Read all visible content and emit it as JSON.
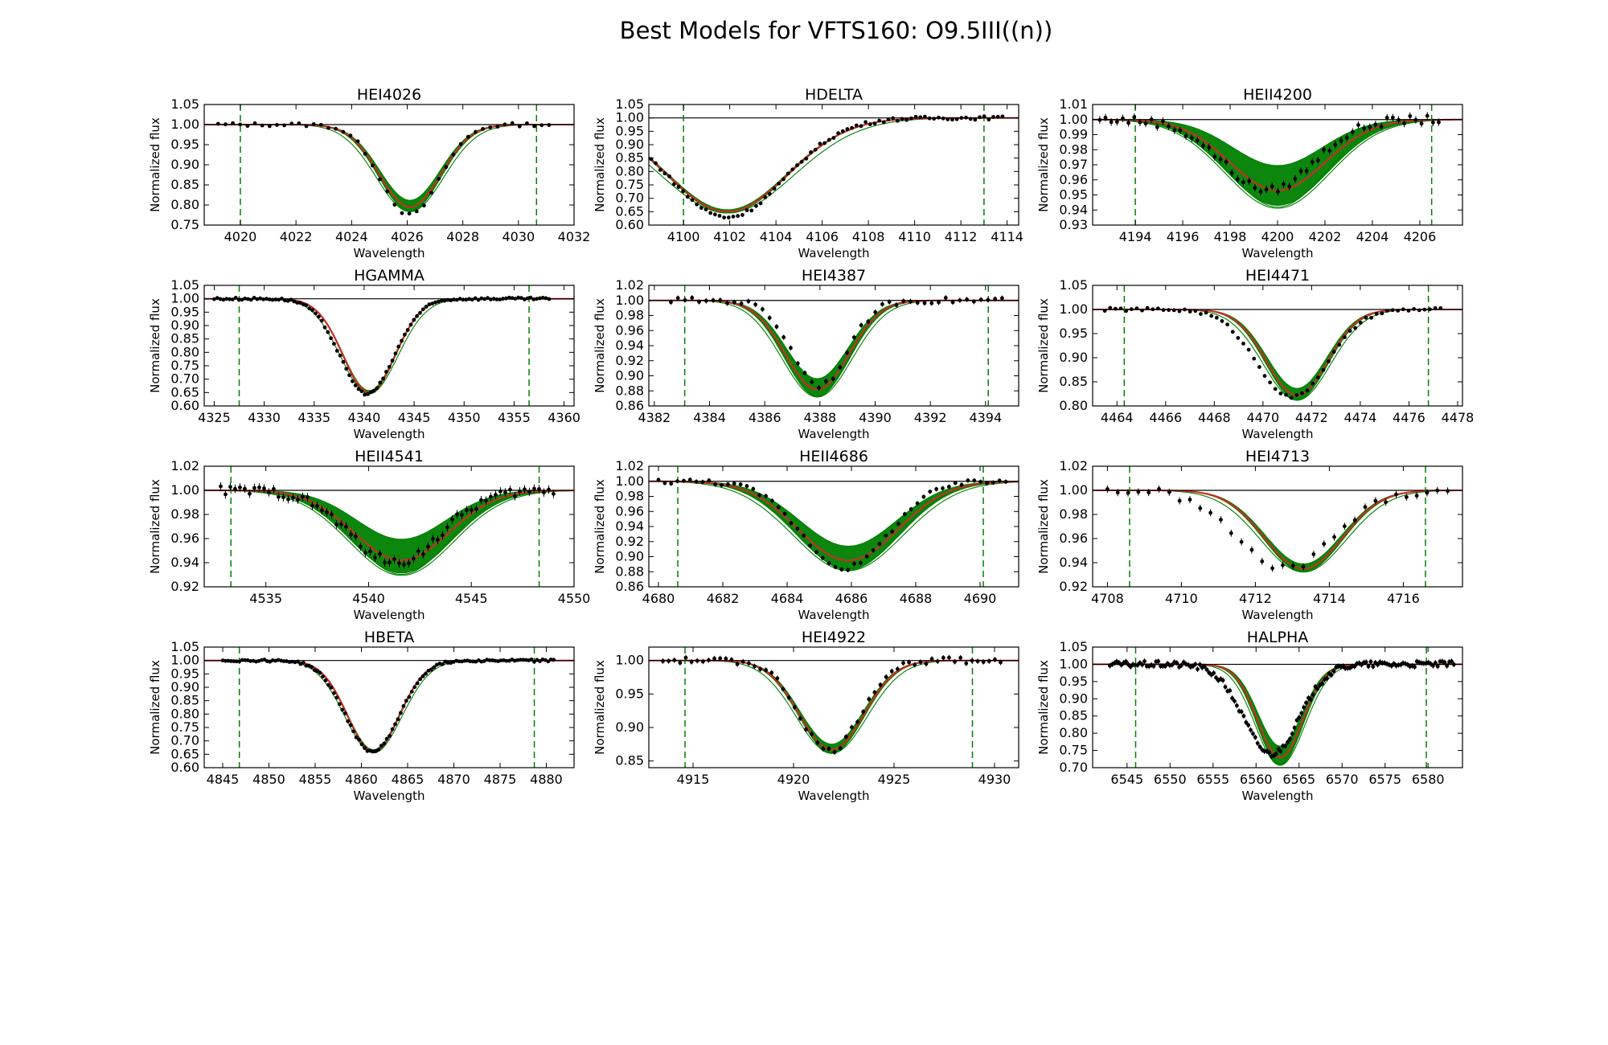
{
  "figure_title": "Best Models for VFTS160: O9.5III((n))",
  "colors": {
    "fit_band": "#008000",
    "best_fit": "#d62728",
    "data": "#000000",
    "marker_line": "#008000",
    "continuum": "#000000"
  },
  "chart_data": [
    {
      "type": "line",
      "title": "HEI4026",
      "xlabel": "Wavelength",
      "ylabel": "Normalized flux",
      "xlim": [
        4018.7,
        4032.0
      ],
      "ylim": [
        0.75,
        1.05
      ],
      "xticks": [
        4020,
        4022,
        4024,
        4026,
        4028,
        4030,
        4032
      ],
      "yticks": [
        "0.75",
        "0.80",
        "0.85",
        "0.90",
        "0.95",
        "1.00",
        "1.05"
      ],
      "dashed_markers": [
        4020.0,
        4030.65
      ],
      "model": {
        "center": 4026.1,
        "depth": 0.205,
        "sigma": 1.1,
        "band_spread": 0.08
      },
      "observed": {
        "x_range": [
          4019.2,
          4031.1
        ],
        "n": 46,
        "center": 4026.1,
        "depth": 0.225,
        "sigma": 1.05,
        "errbar": 0.004
      }
    },
    {
      "type": "line",
      "title": "HDELTA",
      "xlabel": "Wavelength",
      "ylabel": "Normalized flux",
      "xlim": [
        4098.5,
        4114.5
      ],
      "ylim": [
        0.6,
        1.05
      ],
      "xticks": [
        4100,
        4102,
        4104,
        4106,
        4108,
        4110,
        4112,
        4114
      ],
      "yticks": [
        "0.60",
        "0.65",
        "0.70",
        "0.75",
        "0.80",
        "0.85",
        "0.90",
        "0.95",
        "1.00",
        "1.05"
      ],
      "dashed_markers": [
        4100.0,
        4113.0
      ],
      "model": {
        "center": 4101.9,
        "depth": 0.35,
        "sigma": 2.6,
        "band_spread": 0.02
      },
      "observed": {
        "x_range": [
          4098.6,
          4113.8
        ],
        "n": 78,
        "center": 4101.9,
        "depth": 0.37,
        "sigma": 2.5,
        "errbar": 0.006
      }
    },
    {
      "type": "line",
      "title": "HEII4200",
      "xlabel": "Wavelength",
      "ylabel": "Normalized flux",
      "xlim": [
        4192.2,
        4207.8
      ],
      "ylim": [
        0.93,
        1.01
      ],
      "xticks": [
        4194,
        4196,
        4198,
        4200,
        4202,
        4204,
        4206
      ],
      "yticks": [
        "0.93",
        "0.94",
        "0.95",
        "0.96",
        "0.97",
        "0.98",
        "0.99",
        "1.00",
        "1.01"
      ],
      "dashed_markers": [
        4194.0,
        4206.5
      ],
      "model": {
        "center": 4200.0,
        "depth": 0.047,
        "sigma": 2.0,
        "band_spread": 0.35
      },
      "observed": {
        "x_range": [
          4192.5,
          4206.8
        ],
        "n": 60,
        "center": 4199.6,
        "depth": 0.047,
        "sigma": 1.9,
        "errbar": 0.0025
      }
    },
    {
      "type": "line",
      "title": "HGAMMA",
      "xlabel": "Wavelength",
      "ylabel": "Normalized flux",
      "xlim": [
        4324.0,
        4361.0
      ],
      "ylim": [
        0.6,
        1.05
      ],
      "xticks": [
        4325,
        4330,
        4335,
        4340,
        4345,
        4350,
        4355,
        4360
      ],
      "yticks": [
        "0.60",
        "0.65",
        "0.70",
        "0.75",
        "0.80",
        "0.85",
        "0.90",
        "0.95",
        "1.00",
        "1.05"
      ],
      "dashed_markers": [
        4327.5,
        4356.5
      ],
      "model": {
        "center": 4340.5,
        "depth": 0.35,
        "sigma": 2.6,
        "band_spread": 0.02
      },
      "observed": {
        "x_range": [
          4325.0,
          4358.5
        ],
        "n": 110,
        "center": 4340.3,
        "depth": 0.355,
        "sigma": 2.7,
        "errbar": 0.004
      }
    },
    {
      "type": "line",
      "title": "HEI4387",
      "xlabel": "Wavelength",
      "ylabel": "Normalized flux",
      "xlim": [
        4381.8,
        4395.2
      ],
      "ylim": [
        0.86,
        1.02
      ],
      "xticks": [
        4382,
        4384,
        4386,
        4388,
        4390,
        4392,
        4394
      ],
      "yticks": [
        "0.86",
        "0.88",
        "0.90",
        "0.92",
        "0.94",
        "0.96",
        "0.98",
        "1.00",
        "1.02"
      ],
      "dashed_markers": [
        4383.1,
        4394.1
      ],
      "model": {
        "center": 4387.9,
        "depth": 0.118,
        "sigma": 1.15,
        "band_spread": 0.12
      },
      "observed": {
        "x_range": [
          4382.6,
          4394.6
        ],
        "n": 48,
        "center": 4388.0,
        "depth": 0.112,
        "sigma": 1.0,
        "errbar": 0.0035
      }
    },
    {
      "type": "line",
      "title": "HEI4471",
      "xlabel": "Wavelength",
      "ylabel": "Normalized flux",
      "xlim": [
        4463.0,
        4478.2
      ],
      "ylim": [
        0.8,
        1.05
      ],
      "xticks": [
        4464,
        4466,
        4468,
        4470,
        4472,
        4474,
        4476,
        4478
      ],
      "yticks": [
        "0.80",
        "0.85",
        "0.90",
        "0.95",
        "1.00",
        "1.05"
      ],
      "dashed_markers": [
        4464.3,
        4476.8
      ],
      "model": {
        "center": 4471.4,
        "depth": 0.178,
        "sigma": 1.25,
        "band_spread": 0.08
      },
      "observed": {
        "x_range": [
          4463.5,
          4477.3
        ],
        "n": 64,
        "center": 4471.2,
        "depth": 0.182,
        "sigma": 1.45,
        "errbar": 0.003
      }
    },
    {
      "type": "line",
      "title": "HEII4541",
      "xlabel": "Wavelength",
      "ylabel": "Normalized flux",
      "xlim": [
        4532.0,
        4550.0
      ],
      "ylim": [
        0.92,
        1.02
      ],
      "xticks": [
        4535,
        4540,
        4545,
        4550
      ],
      "yticks": [
        "0.92",
        "0.94",
        "0.96",
        "0.98",
        "1.00",
        "1.02"
      ],
      "dashed_markers": [
        4533.3,
        4548.3
      ],
      "model": {
        "center": 4541.6,
        "depth": 0.058,
        "sigma": 2.3,
        "band_spread": 0.3
      },
      "observed": {
        "x_range": [
          4532.8,
          4549.0
        ],
        "n": 70,
        "center": 4541.3,
        "depth": 0.06,
        "sigma": 2.2,
        "errbar": 0.0035
      }
    },
    {
      "type": "line",
      "title": "HEII4686",
      "xlabel": "Wavelength",
      "ylabel": "Normalized flux",
      "xlim": [
        4679.7,
        4691.2
      ],
      "ylim": [
        0.86,
        1.02
      ],
      "xticks": [
        4680,
        4682,
        4684,
        4686,
        4688,
        4690
      ],
      "yticks": [
        "0.86",
        "0.88",
        "0.90",
        "0.92",
        "0.94",
        "0.96",
        "0.98",
        "1.00",
        "1.02"
      ],
      "dashed_markers": [
        4680.6,
        4690.1
      ],
      "model": {
        "center": 4685.9,
        "depth": 0.105,
        "sigma": 1.55,
        "band_spread": 0.18
      },
      "observed": {
        "x_range": [
          4680.0,
          4690.8
        ],
        "n": 56,
        "center": 4685.8,
        "depth": 0.115,
        "sigma": 1.35,
        "errbar": 0.003
      }
    },
    {
      "type": "line",
      "title": "HEI4713",
      "xlabel": "Wavelength",
      "ylabel": "Normalized flux",
      "xlim": [
        4707.6,
        4717.6
      ],
      "ylim": [
        0.92,
        1.02
      ],
      "xticks": [
        4708,
        4710,
        4712,
        4714,
        4716
      ],
      "yticks": [
        "0.92",
        "0.94",
        "0.96",
        "0.98",
        "1.00",
        "1.02"
      ],
      "dashed_markers": [
        4708.6,
        4716.6
      ],
      "model": {
        "center": 4713.3,
        "depth": 0.065,
        "sigma": 1.05,
        "band_spread": 0.06
      },
      "observed": {
        "x_range": [
          4708.0,
          4717.2
        ],
        "n": 34,
        "center": 4712.8,
        "depth": 0.065,
        "sigma": 1.3,
        "errbar": 0.003
      }
    },
    {
      "type": "line",
      "title": "HBETA",
      "xlabel": "Wavelength",
      "ylabel": "Normalized flux",
      "xlim": [
        4843.0,
        4883.0
      ],
      "ylim": [
        0.6,
        1.05
      ],
      "xticks": [
        4845,
        4850,
        4855,
        4860,
        4865,
        4870,
        4875,
        4880
      ],
      "yticks": [
        "0.60",
        "0.65",
        "0.70",
        "0.75",
        "0.80",
        "0.85",
        "0.90",
        "0.95",
        "1.00",
        "1.05"
      ],
      "dashed_markers": [
        4846.8,
        4878.7
      ],
      "model": {
        "center": 4861.3,
        "depth": 0.34,
        "sigma": 2.8,
        "band_spread": 0.02
      },
      "observed": {
        "x_range": [
          4845.0,
          4880.8
        ],
        "n": 120,
        "center": 4861.2,
        "depth": 0.34,
        "sigma": 2.9,
        "errbar": 0.004
      }
    },
    {
      "type": "line",
      "title": "HEI4922",
      "xlabel": "Wavelength",
      "ylabel": "Normalized flux",
      "xlim": [
        4912.8,
        4931.2
      ],
      "ylim": [
        0.84,
        1.02
      ],
      "xticks": [
        4915,
        4920,
        4925,
        4930
      ],
      "yticks": [
        "0.85",
        "0.90",
        "0.95",
        "1.00"
      ],
      "dashed_markers": [
        4914.6,
        4928.9
      ],
      "model": {
        "center": 4921.9,
        "depth": 0.133,
        "sigma": 1.6,
        "band_spread": 0.06
      },
      "observed": {
        "x_range": [
          4913.5,
          4930.3
        ],
        "n": 60,
        "center": 4921.8,
        "depth": 0.135,
        "sigma": 1.5,
        "errbar": 0.004
      }
    },
    {
      "type": "line",
      "title": "HALPHA",
      "xlabel": "Wavelength",
      "ylabel": "Normalized flux",
      "xlim": [
        6541.0,
        6584.0
      ],
      "ylim": [
        0.7,
        1.05
      ],
      "xticks": [
        6545,
        6550,
        6555,
        6560,
        6565,
        6570,
        6575,
        6580
      ],
      "yticks": [
        "0.70",
        "0.75",
        "0.80",
        "0.85",
        "0.90",
        "0.95",
        "1.00",
        "1.05"
      ],
      "dashed_markers": [
        6546.0,
        6579.8
      ],
      "model": {
        "center": 6562.8,
        "depth": 0.27,
        "sigma": 2.6,
        "band_spread": 0.12
      },
      "observed": {
        "x_range": [
          6543.0,
          6583.0
        ],
        "n": 150,
        "center": 6561.8,
        "depth": 0.26,
        "sigma": 3.2,
        "errbar": 0.008
      }
    }
  ]
}
